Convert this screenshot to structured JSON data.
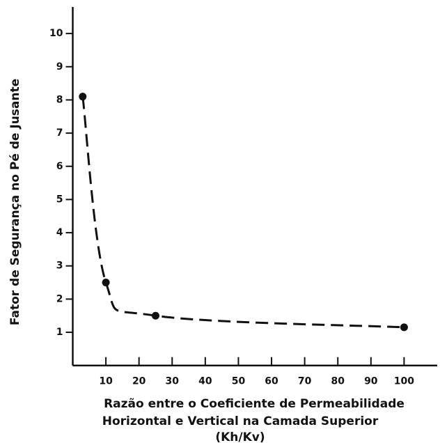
{
  "chart_data": {
    "type": "line",
    "ylabel": "Fator de Segurança no Pé de Jusante",
    "xlabel": [
      "Razão entre o Coeficiente de Permeabilidade",
      "Horizontal e Vertical na Camada Superior",
      "(Kh/Kv)"
    ],
    "x": [
      3,
      10,
      25,
      100
    ],
    "series": [
      {
        "name": "Fator de Segurança",
        "color": "#111111",
        "values": [
          8.1,
          2.5,
          1.5,
          1.15
        ]
      }
    ],
    "xlim": [
      0,
      110
    ],
    "xticks": [
      10,
      20,
      30,
      40,
      50,
      60,
      70,
      80,
      90,
      100
    ],
    "ylim": [
      0,
      10.8
    ],
    "yticks": [
      1,
      2,
      3,
      4,
      5,
      6,
      7,
      8,
      9,
      10
    ],
    "line_style": "dashed",
    "markers": true,
    "grid": false
  }
}
